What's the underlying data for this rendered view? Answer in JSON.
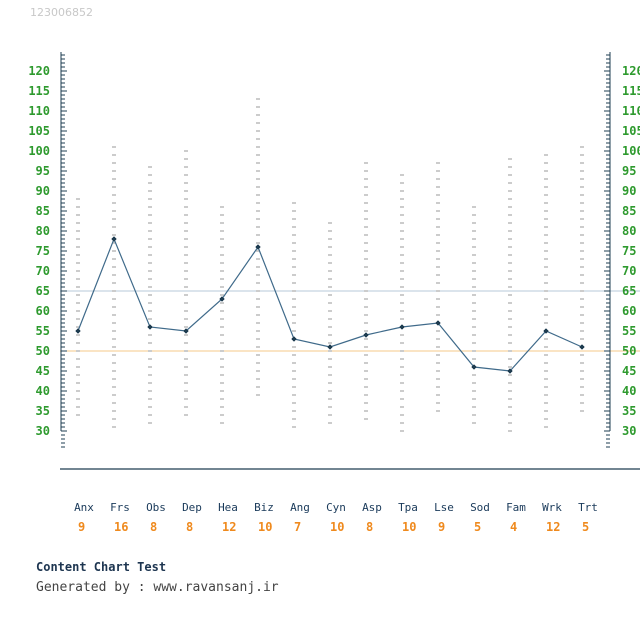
{
  "watermark": "123006852",
  "footer": {
    "title": "Content Chart Test",
    "generated_by": "Generated by : www.ravansanj.ir"
  },
  "colors": {
    "line": "#3f6a8a",
    "ytick": "#2e9a2e",
    "reference_upper": "#b7c8d8",
    "reference_lower": "#f5c98a",
    "count": "#ef8a1e",
    "range_marks": "#9a9a9a"
  },
  "chart_data": {
    "type": "line",
    "title": "",
    "xlabel": "",
    "ylabel": "",
    "ylim": [
      30,
      120
    ],
    "yticks": [
      30,
      35,
      40,
      45,
      50,
      55,
      60,
      65,
      70,
      75,
      80,
      85,
      90,
      95,
      100,
      105,
      110,
      115,
      120
    ],
    "y_axes": "left and right",
    "reference_lines": [
      65,
      50
    ],
    "grid": false,
    "categories": [
      "Anx",
      "Frs",
      "Obs",
      "Dep",
      "Hea",
      "Biz",
      "Ang",
      "Cyn",
      "Asp",
      "Tpa",
      "Lse",
      "Sod",
      "Fam",
      "Wrk",
      "Trt"
    ],
    "counts": [
      "9",
      "16",
      "8",
      "8",
      "12",
      "10",
      "7",
      "10",
      "8",
      "10",
      "9",
      "5",
      "4",
      "12",
      "5"
    ],
    "values": [
      55,
      78,
      56,
      55,
      63,
      76,
      53,
      51,
      54,
      56,
      57,
      46,
      45,
      55,
      51
    ],
    "ranges": [
      [
        34,
        89
      ],
      [
        31,
        101
      ],
      [
        32,
        97
      ],
      [
        34,
        101
      ],
      [
        32,
        87
      ],
      [
        39,
        113
      ],
      [
        31,
        88
      ],
      [
        32,
        83
      ],
      [
        33,
        98
      ],
      [
        30,
        94
      ],
      [
        35,
        97
      ],
      [
        32,
        87
      ],
      [
        30,
        99
      ],
      [
        31,
        99
      ],
      [
        35,
        102
      ]
    ]
  }
}
